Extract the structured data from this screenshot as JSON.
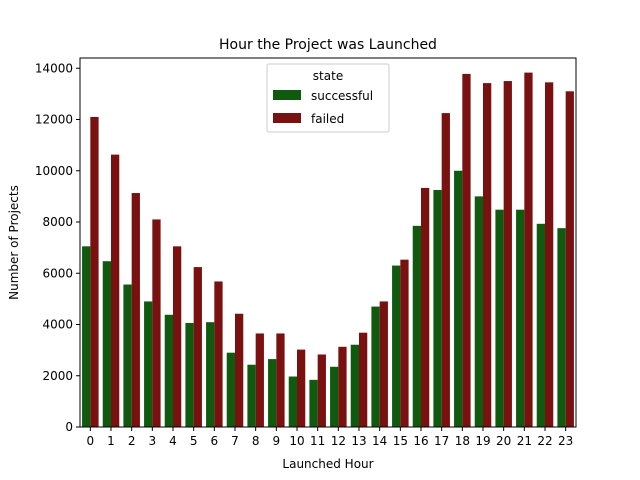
{
  "chart_data": {
    "type": "bar",
    "title": "Hour the Project was Launched",
    "xlabel": "Launched Hour",
    "ylabel": "Number of Projects",
    "categories": [
      "0",
      "1",
      "2",
      "3",
      "4",
      "5",
      "6",
      "7",
      "8",
      "9",
      "10",
      "11",
      "12",
      "13",
      "14",
      "15",
      "16",
      "17",
      "18",
      "19",
      "20",
      "21",
      "22",
      "23"
    ],
    "ylim": [
      0,
      14400
    ],
    "yticks": [
      0,
      2000,
      4000,
      6000,
      8000,
      10000,
      12000,
      14000
    ],
    "legend": {
      "title": "state",
      "position": "top-center"
    },
    "grid": false,
    "series": [
      {
        "name": "successful",
        "color": "#0f5a0f",
        "values": [
          7050,
          6470,
          5560,
          4900,
          4380,
          4060,
          4090,
          2900,
          2430,
          2650,
          1970,
          1840,
          2350,
          3210,
          4700,
          6300,
          7850,
          9250,
          10000,
          9000,
          8480,
          8480,
          7930,
          7760
        ]
      },
      {
        "name": "failed",
        "color": "#7a1111",
        "values": [
          12100,
          10630,
          9130,
          8100,
          7050,
          6240,
          5680,
          4420,
          3650,
          3650,
          3020,
          2830,
          3130,
          3680,
          4900,
          6530,
          9330,
          12250,
          13780,
          13420,
          13500,
          13830,
          13450,
          13100
        ]
      }
    ]
  }
}
